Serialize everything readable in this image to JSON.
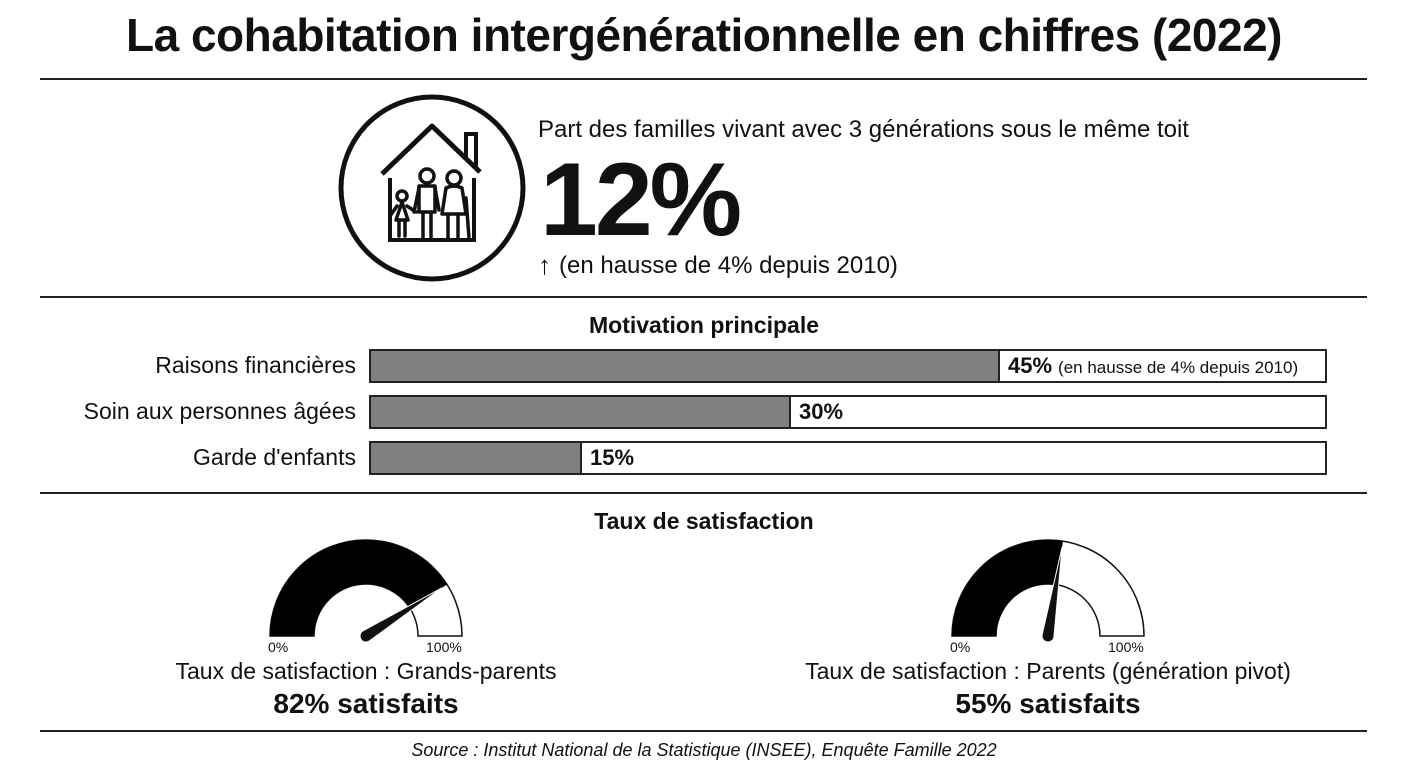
{
  "title": "La cohabitation intergénérationnelle en chiffres (2022)",
  "hero": {
    "icon": "family-house-icon",
    "label": "Part des familles vivant avec 3 générations sous le même toit",
    "value": "12%",
    "value_number": 12,
    "trend_arrow": "↑",
    "trend": "(en hausse de 4% depuis 2010)"
  },
  "chart_data": [
    {
      "type": "bar",
      "title": "Motivation principale",
      "categories": [
        "Raisons financières",
        "Soin aux personnes âgées",
        "Garde d'enfants"
      ],
      "values": [
        45,
        30,
        15
      ],
      "value_labels": [
        "45%",
        "30%",
        "15%"
      ],
      "notes": [
        "(en hausse de 4% depuis 2010)",
        "",
        ""
      ],
      "xlim": [
        0,
        100
      ],
      "orientation": "horizontal",
      "fill_color": "#808080"
    },
    {
      "type": "gauge",
      "title": "Taux de satisfaction",
      "gauges": [
        {
          "label": "Taux de satisfaction : Grands-parents",
          "value": 82,
          "value_label": "82% satisfaits",
          "min_label": "0%",
          "max_label": "100%"
        },
        {
          "label": "Taux de satisfaction : Parents (génération pivot)",
          "value": 55,
          "value_label": "55% satisfaits",
          "min_label": "0%",
          "max_label": "100%"
        }
      ]
    }
  ],
  "source": "Source : Institut National de la Statistique (INSEE), Enquête Famille 2022"
}
